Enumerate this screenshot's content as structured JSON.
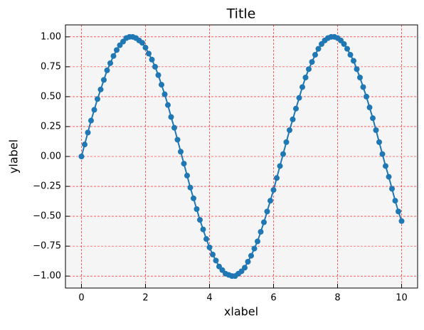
{
  "chart_data": {
    "type": "line",
    "title": "Title",
    "xlabel": "xlabel",
    "ylabel": "ylabel",
    "x": [
      0,
      0.1,
      0.2,
      0.3,
      0.4,
      0.5,
      0.6,
      0.7,
      0.8,
      0.9,
      1,
      1.1,
      1.2,
      1.3,
      1.4,
      1.5,
      1.6,
      1.7,
      1.8,
      1.9,
      2,
      2.1,
      2.2,
      2.3,
      2.4,
      2.5,
      2.6,
      2.7,
      2.8,
      2.9,
      3,
      3.1,
      3.2,
      3.3,
      3.4,
      3.5,
      3.6,
      3.7,
      3.8,
      3.9,
      4,
      4.1,
      4.2,
      4.3,
      4.4,
      4.5,
      4.6,
      4.7,
      4.8,
      4.9,
      5,
      5.1,
      5.2,
      5.3,
      5.4,
      5.5,
      5.6,
      5.7,
      5.8,
      5.9,
      6,
      6.1,
      6.2,
      6.3,
      6.4,
      6.5,
      6.6,
      6.7,
      6.8,
      6.9,
      7,
      7.1,
      7.2,
      7.3,
      7.4,
      7.5,
      7.6,
      7.7,
      7.8,
      7.9,
      8,
      8.1,
      8.2,
      8.3,
      8.4,
      8.5,
      8.6,
      8.7,
      8.8,
      8.9,
      9,
      9.1,
      9.2,
      9.3,
      9.4,
      9.5,
      9.6,
      9.7,
      9.8,
      9.9,
      10
    ],
    "series": [
      {
        "color": "#1f77b4",
        "values": [
          0,
          0.1,
          0.2,
          0.3,
          0.39,
          0.48,
          0.56,
          0.64,
          0.72,
          0.78,
          0.84,
          0.89,
          0.93,
          0.96,
          0.99,
          1,
          1,
          0.99,
          0.97,
          0.95,
          0.91,
          0.86,
          0.81,
          0.75,
          0.68,
          0.6,
          0.52,
          0.43,
          0.33,
          0.24,
          0.14,
          0.04,
          -0.06,
          -0.16,
          -0.26,
          -0.35,
          -0.44,
          -0.53,
          -0.61,
          -0.69,
          -0.76,
          -0.82,
          -0.87,
          -0.92,
          -0.95,
          -0.98,
          -0.99,
          -1,
          -1,
          -0.98,
          -0.96,
          -0.93,
          -0.88,
          -0.83,
          -0.77,
          -0.71,
          -0.63,
          -0.55,
          -0.46,
          -0.37,
          -0.28,
          -0.18,
          -0.08,
          0.02,
          0.12,
          0.22,
          0.31,
          0.4,
          0.49,
          0.58,
          0.66,
          0.73,
          0.79,
          0.85,
          0.9,
          0.94,
          0.97,
          0.99,
          1,
          1,
          0.99,
          0.97,
          0.94,
          0.9,
          0.85,
          0.8,
          0.73,
          0.66,
          0.58,
          0.5,
          0.41,
          0.32,
          0.22,
          0.12,
          0.02,
          -0.08,
          -0.17,
          -0.27,
          -0.37,
          -0.46,
          -0.54
        ]
      }
    ],
    "xlim": [
      -0.5,
      10.5
    ],
    "xticks": [
      0,
      2,
      4,
      6,
      8,
      10
    ],
    "ylim": [
      -1.1,
      1.1
    ],
    "yticks": [
      {
        "value": -1,
        "label": "−1.00"
      },
      {
        "value": -0.75,
        "label": "−0.75"
      },
      {
        "value": -0.5,
        "label": "−0.50"
      },
      {
        "value": -0.25,
        "label": "−0.25"
      },
      {
        "value": 0,
        "label": "0.00"
      },
      {
        "value": 0.25,
        "label": "0.25"
      },
      {
        "value": 0.5,
        "label": "0.50"
      },
      {
        "value": 0.75,
        "label": "0.75"
      },
      {
        "value": 1,
        "label": "1.00"
      }
    ],
    "grid": true,
    "grid_color": "#ff0000",
    "background": "#f5f5f5"
  }
}
